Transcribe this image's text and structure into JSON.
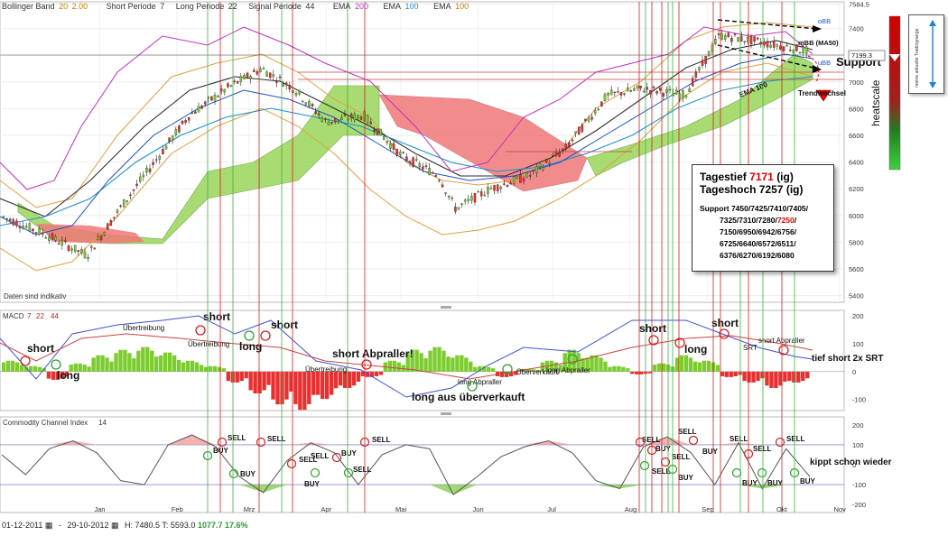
{
  "header": {
    "bollinger": {
      "label": "Bollinger Band",
      "p1": "20",
      "p2": "2.00"
    },
    "short_period": {
      "label": "Short Periode",
      "value": "7"
    },
    "long_period": {
      "label": "Long Periode",
      "value": "22"
    },
    "signal_period": {
      "label": "Signal Periode",
      "value": "44"
    },
    "ema1": {
      "label": "EMA",
      "value": "200"
    },
    "ema2": {
      "label": "EMA",
      "value": "100"
    },
    "ema3": {
      "label": "EMA",
      "value": "100"
    }
  },
  "colors": {
    "ema200": "#c030c0",
    "ema100a": "#2090d0",
    "ema100b": "#c08000",
    "bull": "#7ccc30",
    "bear": "#e83030",
    "cloud_green": "#9ad65a",
    "cloud_red": "#f07878"
  },
  "price_panel": {
    "disclaimer": "Daten sind indikativ",
    "current_price": "7199.3",
    "labels": {
      "obb": "oBB",
      "mbb": "mBB (MA50)",
      "ubb": "uBB",
      "support": "Support",
      "trend": "Trendwechsel",
      "ema100": "EMA 100"
    },
    "heatscale": "heatscale",
    "legend_text": "meine aktuelle Tradingrange"
  },
  "infobox": {
    "tagestief_label": "Tagestief",
    "tagestief_value": "7171",
    "tagestief_unit": "(ig)",
    "tageshoch": "Tageshoch 7257 (ig)",
    "support_lines": [
      "Support 7450/7425/7410/7405/",
      "7325/7310/7280/",
      "7150/6950/6942/6756/",
      "6725/6640/6572/6511/",
      "6376/6270/6192/6080"
    ],
    "support_highlight": "7250",
    "support_trailing": "/"
  },
  "macd_panel": {
    "title": "MACD",
    "p1": "7",
    "p2": "22",
    "p3": "44",
    "annotations": [
      "short",
      "long",
      "Übertreibung",
      "short",
      "Übertreibung",
      "long",
      "short",
      "short Abpraller!",
      "Übertreibung",
      "long Abpraller",
      "long aus überverkauft",
      "Überverkauft",
      "long Abpraller",
      "short",
      "long",
      "short",
      "SRT",
      "short Abpraller",
      "tief short 2x SRT"
    ]
  },
  "cci_panel": {
    "title": "Commodity Channel Index",
    "period": "14",
    "annotations": [
      "BUY",
      "SELL",
      "BUY",
      "SELL",
      "SELL",
      "BUY",
      "SELL",
      "BUY",
      "SELL",
      "SELL",
      "SELL",
      "BUY",
      "SELL",
      "SELL",
      "BUY",
      "SELL",
      "BUY",
      "SELL",
      "BUY",
      "SELL",
      "BUY",
      "SELL",
      "BUY",
      "kippt schon wieder"
    ]
  },
  "footer": {
    "start_date": "01-12-2011",
    "end_date": "29-10-2012",
    "high": "H: 7480.5",
    "low": "T: 5593.0",
    "range": "1077.7",
    "pct": "17.6%"
  },
  "chart_data": [
    {
      "type": "candlestick",
      "title": "",
      "y_ticks": [
        7584.5,
        7400,
        7200,
        7000,
        6800,
        6600,
        6400,
        6200,
        6000,
        5800,
        5600,
        5400
      ],
      "ylim": [
        5350,
        7600
      ],
      "x_ticks": [
        "Jan",
        "Feb",
        "Mrz",
        "Apr",
        "Mai",
        "Jun",
        "Jul",
        "Aug",
        "Sep",
        "Okt",
        "Nov"
      ],
      "series": [
        {
          "name": "Close",
          "points": [
            [
              "2011-12",
              6000
            ],
            [
              "2011-12-20",
              5850
            ],
            [
              "2012-01-05",
              5700
            ],
            [
              "2012-01-20",
              6100
            ],
            [
              "2012-02-01",
              6400
            ],
            [
              "2012-02-15",
              6750
            ],
            [
              "2012-03-01",
              6950
            ],
            [
              "2012-03-15",
              7100
            ],
            [
              "2012-03-28",
              6950
            ],
            [
              "2012-04-10",
              6700
            ],
            [
              "2012-04-25",
              6750
            ],
            [
              "2012-05-10",
              6450
            ],
            [
              "2012-05-25",
              6300
            ],
            [
              "2012-06-01",
              6050
            ],
            [
              "2012-06-15",
              6200
            ],
            [
              "2012-07-01",
              6300
            ],
            [
              "2012-07-15",
              6500
            ],
            [
              "2012-08-01",
              6900
            ],
            [
              "2012-08-15",
              6950
            ],
            [
              "2012-09-01",
              6900
            ],
            [
              "2012-09-15",
              7350
            ],
            [
              "2012-10-01",
              7300
            ],
            [
              "2012-10-15",
              7250
            ],
            [
              "2012-10-29",
              7200
            ]
          ]
        }
      ]
    },
    {
      "type": "bar",
      "title": "MACD",
      "y_ticks": [
        200,
        100,
        0,
        -100
      ],
      "series": [
        {
          "name": "MACD histogram",
          "values": [
            40,
            20,
            -30,
            30,
            60,
            80,
            90,
            70,
            40,
            20,
            -40,
            -80,
            -120,
            -140,
            -100,
            -60,
            -20,
            40,
            80,
            90,
            60,
            20,
            -20,
            10,
            40,
            80,
            60,
            20,
            -10,
            30,
            60,
            40,
            -20,
            -40,
            -60,
            -40
          ]
        }
      ]
    },
    {
      "type": "line",
      "title": "Commodity Channel Index 14",
      "y_ticks": [
        200,
        100,
        0,
        -100,
        -200
      ],
      "series": [
        {
          "name": "CCI",
          "values": [
            50,
            -50,
            80,
            120,
            60,
            -80,
            -100,
            100,
            150,
            90,
            -60,
            -140,
            20,
            110,
            60,
            -100,
            50,
            100,
            80,
            -150,
            -60,
            40,
            90,
            120,
            60,
            -80,
            -120,
            90,
            140,
            60,
            -100,
            110,
            -120,
            80,
            -60
          ]
        }
      ]
    }
  ]
}
